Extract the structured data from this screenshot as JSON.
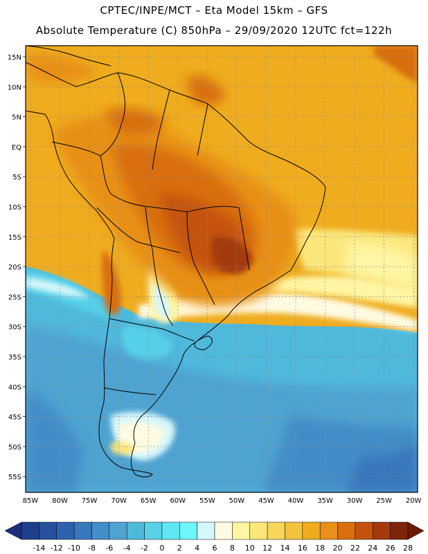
{
  "header": {
    "line1": "CPTEC/INPE/MCT –  Eta Model 15km – GFS",
    "line2": "Absolute Temperature (C) 850hPa – 29/09/2020 12UTC fct=122h"
  },
  "map": {
    "lat_labels": [
      "15N",
      "10N",
      "5N",
      "EQ",
      "5S",
      "10S",
      "15S",
      "20S",
      "25S",
      "30S",
      "35S",
      "40S",
      "45S",
      "50S",
      "55S"
    ],
    "lon_labels": [
      "85W",
      "80W",
      "75W",
      "70W",
      "65W",
      "60W",
      "55W",
      "50W",
      "45W",
      "40W",
      "35W",
      "30W",
      "25W",
      "20W"
    ]
  },
  "colorbar": {
    "labels": [
      "-14",
      "-12",
      "-10",
      "-8",
      "-6",
      "-4",
      "-2",
      "0",
      "2",
      "4",
      "6",
      "8",
      "10",
      "12",
      "14",
      "16",
      "18",
      "20",
      "22",
      "24",
      "26",
      "28"
    ],
    "colors": [
      "#1e3f8c",
      "#25509e",
      "#2d62ae",
      "#3777bc",
      "#438dc8",
      "#4fa3d1",
      "#4fb9dc",
      "#57d0e8",
      "#5ee6f2",
      "#6ef6fb",
      "#d6f7fb",
      "#fffbe2",
      "#fff5a3",
      "#fbe67a",
      "#f7d65c",
      "#f3c33e",
      "#efac1e",
      "#e89018",
      "#d86e10",
      "#c4520c",
      "#a43a0c",
      "#7e2408"
    ]
  }
}
